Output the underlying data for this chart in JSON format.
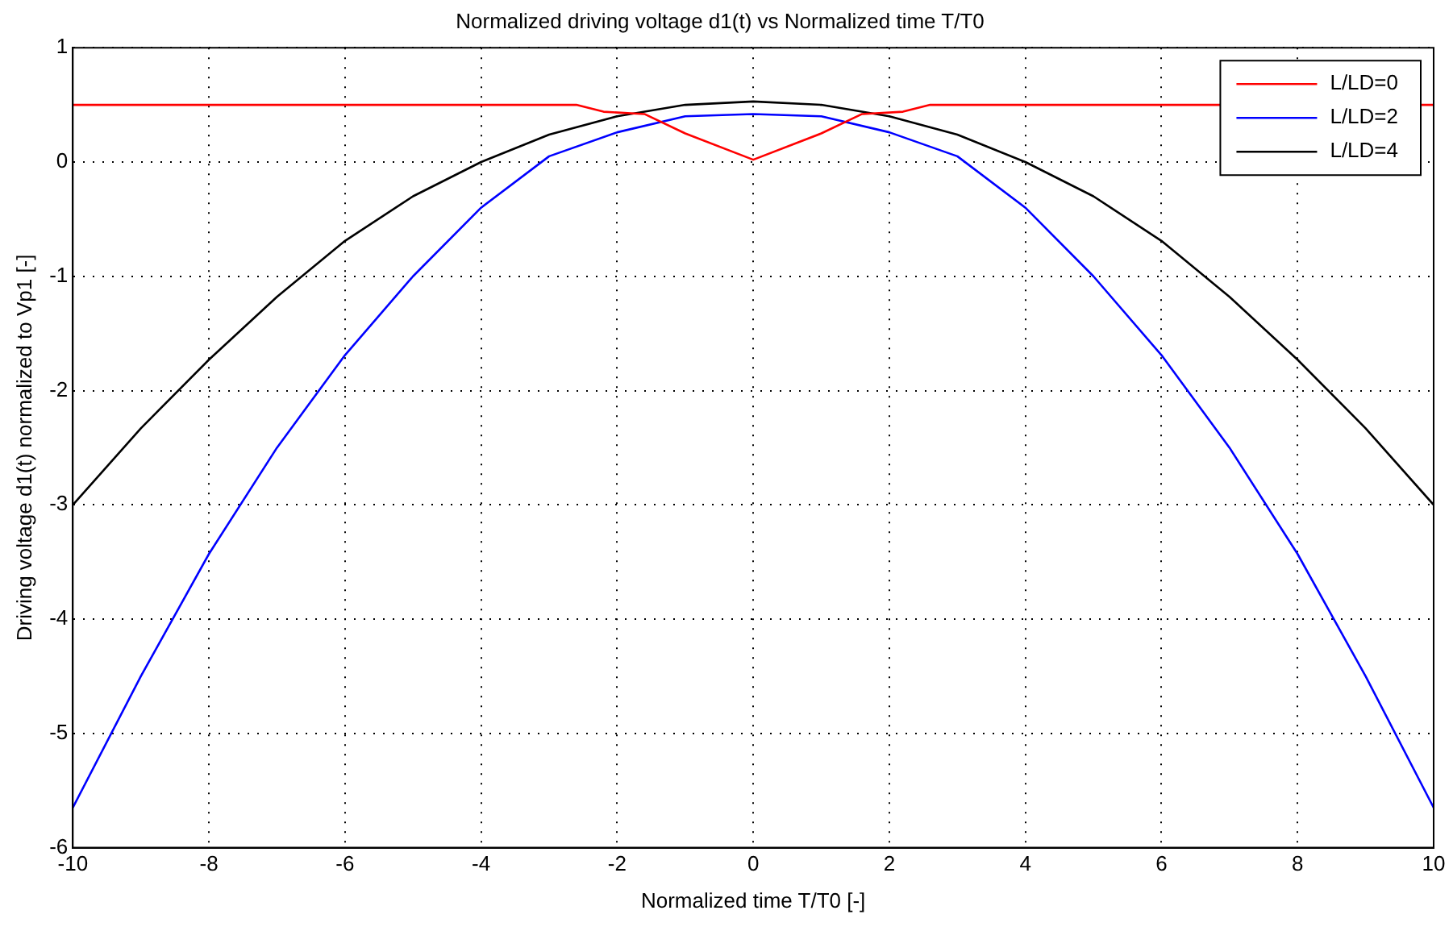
{
  "chart_data": {
    "type": "line",
    "title": "Normalized driving voltage d1(t) vs Normalized time T/T0",
    "xlabel": "Normalized time T/T0 [-]",
    "ylabel": "Driving voltage d1(t) normalized to Vp1 [-]",
    "xlim": [
      -10,
      10
    ],
    "xticks": [
      -10,
      -8,
      -6,
      -4,
      -2,
      0,
      2,
      4,
      6,
      8,
      10
    ],
    "ylim": [
      -6,
      1
    ],
    "yticks": [
      -6,
      -5,
      -4,
      -3,
      -2,
      -1,
      0,
      1
    ],
    "grid": true,
    "legend": "top right",
    "marker": "none",
    "line_style": "solid",
    "series": [
      {
        "name": "L/LD=0",
        "color": "#ff0000",
        "x": [
          -10,
          -2.6,
          -2.2,
          -1.6,
          -1,
          0,
          1,
          1.6,
          2.2,
          2.6,
          10
        ],
        "values": [
          0.5,
          0.5,
          0.44,
          0.42,
          0.25,
          0.02,
          0.25,
          0.42,
          0.44,
          0.5,
          0.5
        ]
      },
      {
        "name": "L/LD=2",
        "color": "#0000ff",
        "x": [
          -10,
          -9,
          -8,
          -7,
          -6,
          -5,
          -4,
          -3,
          -2,
          -1,
          0,
          1,
          2,
          3,
          4,
          5,
          6,
          7,
          8,
          9,
          10
        ],
        "values": [
          -5.65,
          -4.5,
          -3.43,
          -2.5,
          -1.69,
          -1.0,
          -0.4,
          0.05,
          0.26,
          0.4,
          0.42,
          0.4,
          0.26,
          0.05,
          -0.4,
          -1.0,
          -1.69,
          -2.5,
          -3.43,
          -4.5,
          -5.65
        ]
      },
      {
        "name": "L/LD=4",
        "color": "#000000",
        "x": [
          -10,
          -9,
          -8,
          -7,
          -6,
          -5,
          -4,
          -3,
          -2,
          -1,
          0,
          1,
          2,
          3,
          4,
          5,
          6,
          7,
          8,
          9,
          10
        ],
        "values": [
          -3,
          -2.33,
          -1.73,
          -1.18,
          -0.69,
          -0.3,
          0,
          0.24,
          0.4,
          0.5,
          0.53,
          0.5,
          0.4,
          0.24,
          0,
          -0.3,
          -0.69,
          -1.18,
          -1.73,
          -2.33,
          -3
        ]
      }
    ]
  }
}
